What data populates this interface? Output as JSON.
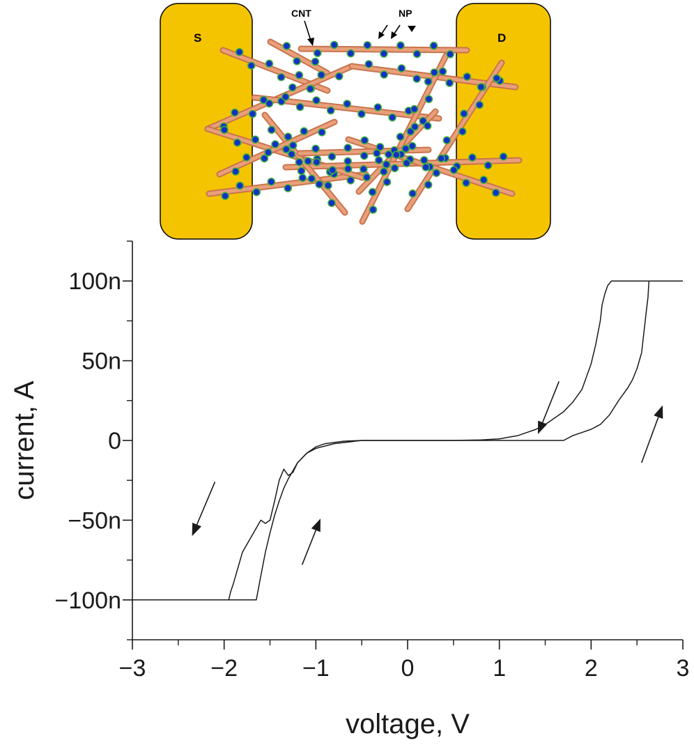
{
  "schematic": {
    "electrode_left": "S",
    "electrode_right": "D",
    "cnt_label": "CNT",
    "np_label": "NP",
    "colors": {
      "electrode": "#F5C400",
      "electrode_edge": "#000000",
      "nanotube": "#E9A07A",
      "nanotube_edge": "#C8744E",
      "nanoparticle": "#1230C8",
      "nanoparticle_edge": "#3FAE3F"
    }
  },
  "chart_data": {
    "type": "line",
    "title": "",
    "xlabel": "voltage, V",
    "ylabel": "current, A",
    "xlim": [
      -3,
      3
    ],
    "ylim": [
      -125,
      125
    ],
    "x_ticks": [
      -3,
      -2,
      -1,
      0,
      1,
      2,
      3
    ],
    "x_tick_labels": [
      "−3",
      "−2",
      "−1",
      "0",
      "1",
      "2",
      "3"
    ],
    "y_ticks": [
      -100,
      -50,
      0,
      50,
      100
    ],
    "y_tick_labels": [
      "−100n",
      "−50n",
      "0",
      "50n",
      "100n"
    ],
    "y_unit_scale": "nA",
    "grid": false,
    "line_color": "#1a1a1a",
    "series": [
      {
        "sweep": "up",
        "x": [
          -3.0,
          -1.65,
          -1.6,
          -1.55,
          -1.5,
          -1.45,
          -1.4,
          -1.35,
          -1.3,
          -1.25,
          -1.2,
          -1.1,
          -1.0,
          -0.9,
          -0.7,
          -0.5,
          0.0,
          0.5,
          1.0,
          1.5,
          1.7,
          1.8,
          1.9,
          2.0,
          2.1,
          2.2,
          2.3,
          2.4,
          2.45,
          2.5,
          2.55,
          2.58,
          2.6,
          2.62,
          2.63,
          2.65,
          3.0
        ],
        "y": [
          -100,
          -100,
          -85,
          -70,
          -58,
          -47,
          -38,
          -30,
          -24,
          -19,
          -14,
          -8,
          -4,
          -2,
          -0.5,
          0,
          0,
          0,
          0,
          0,
          0,
          3,
          5,
          7,
          10,
          16,
          25,
          33,
          38,
          45,
          55,
          70,
          80,
          90,
          100,
          100,
          100
        ]
      },
      {
        "sweep": "down",
        "x": [
          3.0,
          2.22,
          2.18,
          2.15,
          2.12,
          2.1,
          2.05,
          2.0,
          1.9,
          1.8,
          1.7,
          1.6,
          1.5,
          1.4,
          1.3,
          1.2,
          1.1,
          1.0,
          0.8,
          0.5,
          0.0,
          -0.5,
          -0.8,
          -1.0,
          -1.1,
          -1.2,
          -1.25,
          -1.3,
          -1.35,
          -1.4,
          -1.45,
          -1.5,
          -1.55,
          -1.6,
          -1.65,
          -1.7,
          -1.75,
          -1.8,
          -1.85,
          -1.9,
          -1.93,
          -1.95,
          -3.0
        ],
        "y": [
          100,
          100,
          97,
          92,
          85,
          75,
          60,
          48,
          32,
          24,
          18,
          14,
          10,
          7,
          5,
          3,
          2,
          1,
          0.3,
          0,
          0,
          0,
          -2,
          -5,
          -8,
          -14,
          -20,
          -22,
          -18,
          -25,
          -38,
          -50,
          -52,
          -50,
          -55,
          -60,
          -65,
          -70,
          -80,
          -90,
          -95,
          -100,
          -100
        ]
      }
    ],
    "arrows": [
      {
        "x1": -2.1,
        "y1": -26,
        "x2": -2.35,
        "y2": -60
      },
      {
        "x1": -1.15,
        "y1": -78,
        "x2": -0.95,
        "y2": -49
      },
      {
        "x1": 1.65,
        "y1": 37,
        "x2": 1.42,
        "y2": 4
      },
      {
        "x1": 2.55,
        "y1": -14,
        "x2": 2.78,
        "y2": 22
      }
    ]
  }
}
